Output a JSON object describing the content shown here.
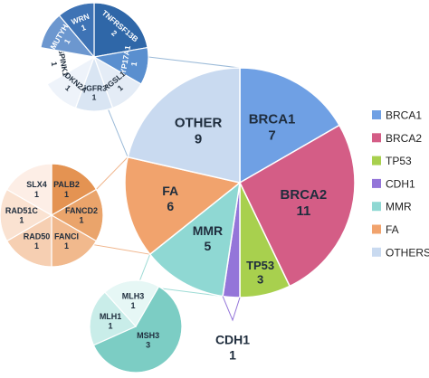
{
  "chart_data": [
    {
      "type": "pie",
      "role": "main",
      "series": [
        {
          "label": "BRCA1",
          "value": 7,
          "color": "#6fa0e4"
        },
        {
          "label": "BRCA2",
          "value": 11,
          "color": "#d45d86"
        },
        {
          "label": "TP53",
          "value": 3,
          "color": "#a8d04e"
        },
        {
          "label": "CDH1",
          "value": 1,
          "color": "#9475d9"
        },
        {
          "label": "MMR",
          "value": 5,
          "color": "#8fd8d3"
        },
        {
          "label": "FA",
          "value": 6,
          "color": "#f1a36d"
        },
        {
          "label": "OTHER",
          "value": 9,
          "color": "#c9daf0"
        }
      ],
      "legend": {
        "placement": "right",
        "entries": [
          "BRCA1",
          "BRCA2",
          "TP53",
          "CDH1",
          "MMR",
          "FA",
          "OTHERS"
        ]
      }
    },
    {
      "type": "pie",
      "role": "breakdown",
      "parent": "OTHER",
      "series": [
        {
          "label": "TNFRSF13B",
          "value": 2,
          "color": "#2f67a8"
        },
        {
          "label": "CYP17A1",
          "value": 1,
          "color": "#5a8fcf"
        },
        {
          "label": "RGSL1",
          "value": 1,
          "color": "#e4ecf6"
        },
        {
          "label": "FGFR3",
          "value": 1,
          "color": "#d9e5f3"
        },
        {
          "label": "CDKN2A",
          "value": 1,
          "color": "#eef3fa"
        },
        {
          "label": "SPINK1",
          "value": 1,
          "color": "#ffffff"
        },
        {
          "label": "MUTYH",
          "value": 1,
          "color": "#6c97cf"
        },
        {
          "label": "WRN",
          "value": 1,
          "color": "#3e73b5"
        }
      ]
    },
    {
      "type": "pie",
      "role": "breakdown",
      "parent": "FA",
      "series": [
        {
          "label": "PALB2",
          "value": 1,
          "color": "#e49352"
        },
        {
          "label": "FANCD2",
          "value": 1,
          "color": "#eaa46b"
        },
        {
          "label": "FANCI",
          "value": 1,
          "color": "#f1b98d"
        },
        {
          "label": "RAD50",
          "value": 1,
          "color": "#f6cfb2"
        },
        {
          "label": "RAD51C",
          "value": 1,
          "color": "#fae2d1"
        },
        {
          "label": "SLX4",
          "value": 1,
          "color": "#fdeee6"
        }
      ]
    },
    {
      "type": "pie",
      "role": "breakdown",
      "parent": "MMR",
      "series": [
        {
          "label": "MSH3",
          "value": 3,
          "color": "#7ccdc4"
        },
        {
          "label": "MLH1",
          "value": 1,
          "color": "#c9ede9"
        },
        {
          "label": "MLH3",
          "value": 1,
          "color": "#e6f7f5"
        }
      ]
    }
  ]
}
